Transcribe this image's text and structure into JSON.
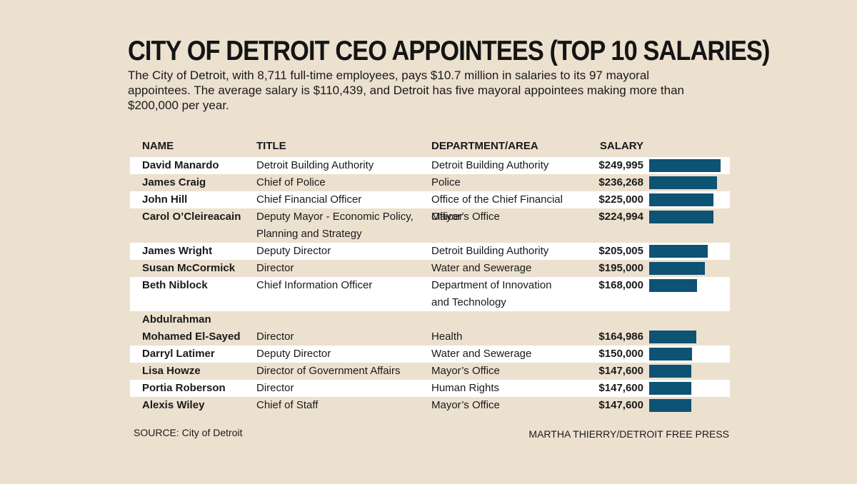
{
  "title": "CITY OF DETROIT CEO APPOINTEES (TOP 10 SALARIES)",
  "intro": "The City of Detroit, with 8,711 full-time employees, pays $10.7 million in salaries to its 97 mayoral appointees. The average salary is $110,439, and Detroit has five mayoral appointees making more than $200,000 per year.",
  "headers": {
    "name": "NAME",
    "title": "TITLE",
    "department": "DEPARTMENT/AREA",
    "salary": "SALARY"
  },
  "rows": [
    {
      "name": "David Manardo",
      "title": "Detroit Building Authority",
      "department": "Detroit Building Authority",
      "salary": "$249,995"
    },
    {
      "name": "James Craig",
      "title": "Chief of Police",
      "department": "Police",
      "salary": "$236,268"
    },
    {
      "name": "John Hill",
      "title": "Chief Financial Officer",
      "department": "Office of the Chief Financial Officer",
      "salary": "$225,000"
    },
    {
      "name": "Carol O’Cleireacain",
      "title": "Deputy Mayor - Economic Policy,\nPlanning and Strategy",
      "department": "Mayor’s Office",
      "salary": "$224,994"
    },
    {
      "name": "James Wright",
      "title": "Deputy Director",
      "department": "Detroit Building Authority",
      "salary": "$205,005"
    },
    {
      "name": "Susan McCormick",
      "title": "Director",
      "department": "Water and Sewerage",
      "salary": "$195,000"
    },
    {
      "name": "Beth Niblock",
      "title": "Chief Information Officer",
      "department": "Department of Innovation\nand Technology",
      "salary": "$168,000"
    },
    {
      "name": "Abdulrahman\nMohamed El-Sayed",
      "title": "Director",
      "department": "Health",
      "salary": "$164,986"
    },
    {
      "name": "Darryl Latimer",
      "title": "Deputy Director",
      "department": "Water and Sewerage",
      "salary": "$150,000"
    },
    {
      "name": "Lisa Howze",
      "title": "Director of Government Affairs",
      "department": "Mayor’s Office",
      "salary": "$147,600"
    },
    {
      "name": "Portia Roberson",
      "title": "Director",
      "department": "Human Rights",
      "salary": "$147,600"
    },
    {
      "name": "Alexis Wiley",
      "title": "Chief of Staff",
      "department": "Mayor’s Office",
      "salary": "$147,600"
    }
  ],
  "chart_data": {
    "type": "bar",
    "orientation": "horizontal",
    "categories": [
      "David Manardo",
      "James Craig",
      "John Hill",
      "Carol O’Cleireacain",
      "James Wright",
      "Susan McCormick",
      "Beth Niblock",
      "Abdulrahman Mohamed El-Sayed",
      "Darryl Latimer",
      "Lisa Howze",
      "Portia Roberson",
      "Alexis Wiley"
    ],
    "values": [
      249995,
      236268,
      225000,
      224994,
      205005,
      195000,
      168000,
      164986,
      150000,
      147600,
      147600,
      147600
    ],
    "bar_color": "#0d5373",
    "grid": false
  },
  "source": "SOURCE: City of Detroit",
  "credit": "MARTHA THIERRY/DETROIT FREE PRESS",
  "colors": {
    "background": "#ece0cf",
    "row_highlight": "#ffffff",
    "bar": "#0d5373"
  }
}
